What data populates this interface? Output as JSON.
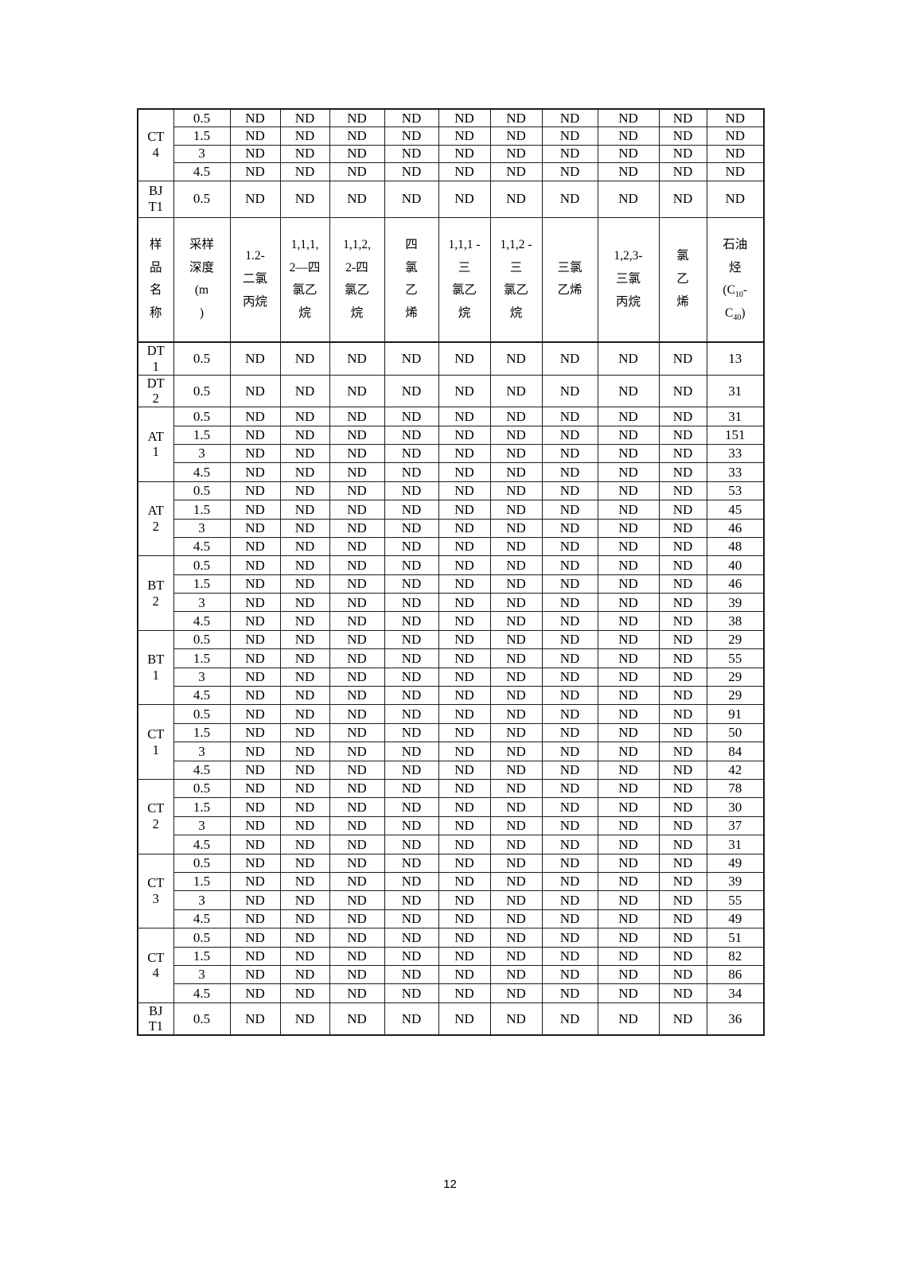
{
  "page_number": "12",
  "table": {
    "continuation_section": {
      "groups": [
        {
          "site_lines": [
            "CT",
            "4"
          ],
          "rows": [
            {
              "depth": "0.5",
              "values": [
                "ND",
                "ND",
                "ND",
                "ND",
                "ND",
                "ND",
                "ND",
                "ND",
                "ND",
                "ND"
              ]
            },
            {
              "depth": "1.5",
              "values": [
                "ND",
                "ND",
                "ND",
                "ND",
                "ND",
                "ND",
                "ND",
                "ND",
                "ND",
                "ND"
              ]
            },
            {
              "depth": "3",
              "values": [
                "ND",
                "ND",
                "ND",
                "ND",
                "ND",
                "ND",
                "ND",
                "ND",
                "ND",
                "ND"
              ]
            },
            {
              "depth": "4.5",
              "values": [
                "ND",
                "ND",
                "ND",
                "ND",
                "ND",
                "ND",
                "ND",
                "ND",
                "ND",
                "ND"
              ]
            }
          ]
        },
        {
          "site_lines": [
            "BJ",
            "T1"
          ],
          "rows": [
            {
              "depth": "0.5",
              "values": [
                "ND",
                "ND",
                "ND",
                "ND",
                "ND",
                "ND",
                "ND",
                "ND",
                "ND",
                "ND"
              ]
            }
          ]
        }
      ]
    },
    "header": {
      "sample_name": "样品名称",
      "sample_name_lines": [
        "样",
        "品",
        "名",
        "称"
      ],
      "depth_label": "采样深度(m)",
      "depth_lines": [
        "采样",
        "深度",
        "(m",
        ")"
      ],
      "chemicals": [
        {
          "name": "1.2-二氯丙烷",
          "lines": [
            "1.2-",
            "二氯",
            "丙烷"
          ]
        },
        {
          "name": "1,1,1,2—四氯乙烷",
          "lines": [
            "1,1,1,",
            "2—四",
            "氯乙",
            "烷"
          ]
        },
        {
          "name": "1,1,2,2-四氯乙烷",
          "lines": [
            "1,1,2,",
            "2-四",
            "氯乙",
            "烷"
          ]
        },
        {
          "name": "四氯乙烯",
          "lines": [
            "四",
            "氯",
            "乙",
            "烯"
          ]
        },
        {
          "name": "1,1,1-三氯乙烷",
          "lines": [
            "1,1,1 -",
            "三",
            "氯乙",
            "烷"
          ]
        },
        {
          "name": "1,1,2-三氯乙烷",
          "lines": [
            "1,1,2 -",
            "三",
            "氯乙",
            "烷"
          ]
        },
        {
          "name": "三氯乙烯",
          "lines": [
            "三氯",
            "乙烯"
          ]
        },
        {
          "name": "1,2,3-三氯丙烷",
          "lines": [
            "1,2,3-",
            "三氯",
            "丙烷"
          ]
        },
        {
          "name": "氯乙烯",
          "lines": [
            "氯",
            "乙",
            "烯"
          ]
        },
        {
          "name": "石油烃(C10-C40)",
          "lines": [
            "石油",
            "烃",
            "(C10-",
            "C40)"
          ]
        }
      ]
    },
    "data_section": {
      "groups": [
        {
          "site_lines": [
            "DT",
            "1"
          ],
          "rows": [
            {
              "depth": "0.5",
              "values": [
                "ND",
                "ND",
                "ND",
                "ND",
                "ND",
                "ND",
                "ND",
                "ND",
                "ND",
                "13"
              ]
            }
          ]
        },
        {
          "site_lines": [
            "DT",
            "2"
          ],
          "rows": [
            {
              "depth": "0.5",
              "values": [
                "ND",
                "ND",
                "ND",
                "ND",
                "ND",
                "ND",
                "ND",
                "ND",
                "ND",
                "31"
              ]
            }
          ]
        },
        {
          "site_lines": [
            "AT",
            "1"
          ],
          "rows": [
            {
              "depth": "0.5",
              "values": [
                "ND",
                "ND",
                "ND",
                "ND",
                "ND",
                "ND",
                "ND",
                "ND",
                "ND",
                "31"
              ]
            },
            {
              "depth": "1.5",
              "values": [
                "ND",
                "ND",
                "ND",
                "ND",
                "ND",
                "ND",
                "ND",
                "ND",
                "ND",
                "151"
              ]
            },
            {
              "depth": "3",
              "values": [
                "ND",
                "ND",
                "ND",
                "ND",
                "ND",
                "ND",
                "ND",
                "ND",
                "ND",
                "33"
              ]
            },
            {
              "depth": "4.5",
              "values": [
                "ND",
                "ND",
                "ND",
                "ND",
                "ND",
                "ND",
                "ND",
                "ND",
                "ND",
                "33"
              ]
            }
          ]
        },
        {
          "site_lines": [
            "AT",
            "2"
          ],
          "rows": [
            {
              "depth": "0.5",
              "values": [
                "ND",
                "ND",
                "ND",
                "ND",
                "ND",
                "ND",
                "ND",
                "ND",
                "ND",
                "53"
              ]
            },
            {
              "depth": "1.5",
              "values": [
                "ND",
                "ND",
                "ND",
                "ND",
                "ND",
                "ND",
                "ND",
                "ND",
                "ND",
                "45"
              ]
            },
            {
              "depth": "3",
              "values": [
                "ND",
                "ND",
                "ND",
                "ND",
                "ND",
                "ND",
                "ND",
                "ND",
                "ND",
                "46"
              ]
            },
            {
              "depth": "4.5",
              "values": [
                "ND",
                "ND",
                "ND",
                "ND",
                "ND",
                "ND",
                "ND",
                "ND",
                "ND",
                "48"
              ]
            }
          ]
        },
        {
          "site_lines": [
            "BT",
            "2"
          ],
          "rows": [
            {
              "depth": "0.5",
              "values": [
                "ND",
                "ND",
                "ND",
                "ND",
                "ND",
                "ND",
                "ND",
                "ND",
                "ND",
                "40"
              ]
            },
            {
              "depth": "1.5",
              "values": [
                "ND",
                "ND",
                "ND",
                "ND",
                "ND",
                "ND",
                "ND",
                "ND",
                "ND",
                "46"
              ]
            },
            {
              "depth": "3",
              "values": [
                "ND",
                "ND",
                "ND",
                "ND",
                "ND",
                "ND",
                "ND",
                "ND",
                "ND",
                "39"
              ]
            },
            {
              "depth": "4.5",
              "values": [
                "ND",
                "ND",
                "ND",
                "ND",
                "ND",
                "ND",
                "ND",
                "ND",
                "ND",
                "38"
              ]
            }
          ]
        },
        {
          "site_lines": [
            "BT",
            "1"
          ],
          "rows": [
            {
              "depth": "0.5",
              "values": [
                "ND",
                "ND",
                "ND",
                "ND",
                "ND",
                "ND",
                "ND",
                "ND",
                "ND",
                "29"
              ]
            },
            {
              "depth": "1.5",
              "values": [
                "ND",
                "ND",
                "ND",
                "ND",
                "ND",
                "ND",
                "ND",
                "ND",
                "ND",
                "55"
              ]
            },
            {
              "depth": "3",
              "values": [
                "ND",
                "ND",
                "ND",
                "ND",
                "ND",
                "ND",
                "ND",
                "ND",
                "ND",
                "29"
              ]
            },
            {
              "depth": "4.5",
              "values": [
                "ND",
                "ND",
                "ND",
                "ND",
                "ND",
                "ND",
                "ND",
                "ND",
                "ND",
                "29"
              ]
            }
          ]
        },
        {
          "site_lines": [
            "CT",
            "1"
          ],
          "rows": [
            {
              "depth": "0.5",
              "values": [
                "ND",
                "ND",
                "ND",
                "ND",
                "ND",
                "ND",
                "ND",
                "ND",
                "ND",
                "91"
              ]
            },
            {
              "depth": "1.5",
              "values": [
                "ND",
                "ND",
                "ND",
                "ND",
                "ND",
                "ND",
                "ND",
                "ND",
                "ND",
                "50"
              ]
            },
            {
              "depth": "3",
              "values": [
                "ND",
                "ND",
                "ND",
                "ND",
                "ND",
                "ND",
                "ND",
                "ND",
                "ND",
                "84"
              ]
            },
            {
              "depth": "4.5",
              "values": [
                "ND",
                "ND",
                "ND",
                "ND",
                "ND",
                "ND",
                "ND",
                "ND",
                "ND",
                "42"
              ]
            }
          ]
        },
        {
          "site_lines": [
            "CT",
            "2"
          ],
          "rows": [
            {
              "depth": "0.5",
              "values": [
                "ND",
                "ND",
                "ND",
                "ND",
                "ND",
                "ND",
                "ND",
                "ND",
                "ND",
                "78"
              ]
            },
            {
              "depth": "1.5",
              "values": [
                "ND",
                "ND",
                "ND",
                "ND",
                "ND",
                "ND",
                "ND",
                "ND",
                "ND",
                "30"
              ]
            },
            {
              "depth": "3",
              "values": [
                "ND",
                "ND",
                "ND",
                "ND",
                "ND",
                "ND",
                "ND",
                "ND",
                "ND",
                "37"
              ]
            },
            {
              "depth": "4.5",
              "values": [
                "ND",
                "ND",
                "ND",
                "ND",
                "ND",
                "ND",
                "ND",
                "ND",
                "ND",
                "31"
              ]
            }
          ]
        },
        {
          "site_lines": [
            "CT",
            "3"
          ],
          "rows": [
            {
              "depth": "0.5",
              "values": [
                "ND",
                "ND",
                "ND",
                "ND",
                "ND",
                "ND",
                "ND",
                "ND",
                "ND",
                "49"
              ]
            },
            {
              "depth": "1.5",
              "values": [
                "ND",
                "ND",
                "ND",
                "ND",
                "ND",
                "ND",
                "ND",
                "ND",
                "ND",
                "39"
              ]
            },
            {
              "depth": "3",
              "values": [
                "ND",
                "ND",
                "ND",
                "ND",
                "ND",
                "ND",
                "ND",
                "ND",
                "ND",
                "55"
              ]
            },
            {
              "depth": "4.5",
              "values": [
                "ND",
                "ND",
                "ND",
                "ND",
                "ND",
                "ND",
                "ND",
                "ND",
                "ND",
                "49"
              ]
            }
          ]
        },
        {
          "site_lines": [
            "CT",
            "4"
          ],
          "rows": [
            {
              "depth": "0.5",
              "values": [
                "ND",
                "ND",
                "ND",
                "ND",
                "ND",
                "ND",
                "ND",
                "ND",
                "ND",
                "51"
              ]
            },
            {
              "depth": "1.5",
              "values": [
                "ND",
                "ND",
                "ND",
                "ND",
                "ND",
                "ND",
                "ND",
                "ND",
                "ND",
                "82"
              ]
            },
            {
              "depth": "3",
              "values": [
                "ND",
                "ND",
                "ND",
                "ND",
                "ND",
                "ND",
                "ND",
                "ND",
                "ND",
                "86"
              ]
            },
            {
              "depth": "4.5",
              "values": [
                "ND",
                "ND",
                "ND",
                "ND",
                "ND",
                "ND",
                "ND",
                "ND",
                "ND",
                "34"
              ]
            }
          ]
        },
        {
          "site_lines": [
            "BJ",
            "T1"
          ],
          "rows": [
            {
              "depth": "0.5",
              "values": [
                "ND",
                "ND",
                "ND",
                "ND",
                "ND",
                "ND",
                "ND",
                "ND",
                "ND",
                "36"
              ]
            }
          ]
        }
      ]
    }
  }
}
